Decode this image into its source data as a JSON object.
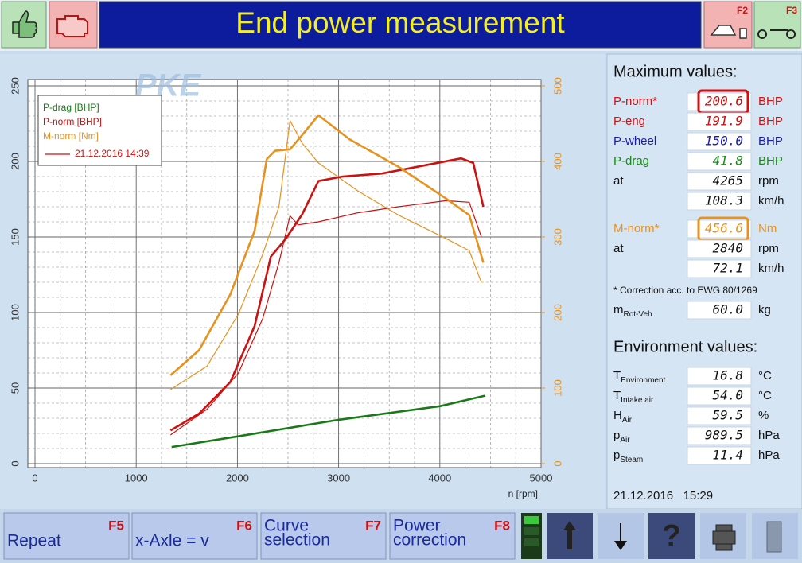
{
  "header": {
    "title": "End power measurement",
    "f2": "F2",
    "f3": "F3"
  },
  "logo": "PKE",
  "chart_data": {
    "type": "line",
    "xlim": [
      0,
      5000
    ],
    "xticks": [
      0,
      1000,
      2000,
      3000,
      4000,
      5000
    ],
    "ylim": [
      0,
      250
    ],
    "yticks": [
      0,
      50,
      100,
      150,
      200,
      250
    ],
    "y2lim": [
      0,
      500
    ],
    "y2ticks": [
      0,
      100,
      200,
      300,
      400,
      500
    ],
    "x_label": "n [rpm]",
    "grid": true,
    "series": [
      {
        "name": "P-drag [BHP]",
        "color": "#1a7a1a",
        "x": [
          1350,
          2000,
          3000,
          4000,
          4450
        ],
        "values": [
          11,
          18,
          29,
          38,
          45
        ]
      },
      {
        "name": "P-norm [BHP]",
        "color": "#cc1111",
        "x": [
          1340,
          1620,
          1930,
          2170,
          2330,
          2480,
          2640,
          2800,
          3040,
          3430,
          3820,
          4210,
          4330,
          4430
        ],
        "values": [
          22,
          33,
          54,
          91,
          137,
          149,
          165,
          187,
          190,
          192,
          197,
          202,
          199,
          170
        ]
      },
      {
        "name": "M-norm [Nm]",
        "color": "#e8921e",
        "axis": "y2",
        "x": [
          1340,
          1620,
          1930,
          2170,
          2290,
          2370,
          2520,
          2640,
          2800,
          3110,
          3590,
          4060,
          4290,
          4430
        ],
        "values": [
          117,
          150,
          224,
          308,
          403,
          414,
          416,
          435,
          461,
          429,
          393,
          351,
          329,
          266
        ]
      }
    ],
    "comparison": {
      "name": "21.12.2016 14:39",
      "color": "#cc1111",
      "series": [
        {
          "color": "#cc1111",
          "x": [
            1340,
            1700,
            2010,
            2250,
            2410,
            2520,
            2600,
            2800,
            3190,
            3590,
            4060,
            4290,
            4410
          ],
          "values": [
            19,
            36,
            60,
            96,
            133,
            164,
            158,
            160,
            166,
            170,
            174,
            173,
            150
          ]
        },
        {
          "color": "#e8921e",
          "axis": "y2",
          "x": [
            1340,
            1700,
            2010,
            2250,
            2410,
            2520,
            2640,
            2800,
            3190,
            3590,
            4060,
            4290,
            4410
          ],
          "values": [
            98,
            129,
            198,
            277,
            340,
            454,
            424,
            398,
            361,
            329,
            298,
            282,
            240
          ]
        }
      ]
    }
  },
  "max_panel": {
    "title": "Maximum values:",
    "rows": [
      {
        "label": "P-norm*",
        "value": "200.6",
        "unit": "BHP",
        "color": "#d01010",
        "boxed": true
      },
      {
        "label": "P-eng",
        "value": "191.9",
        "unit": "BHP",
        "color": "#d01010"
      },
      {
        "label": "P-wheel",
        "value": "150.0",
        "unit": "BHP",
        "color": "#1a1ab0"
      },
      {
        "label": "P-drag",
        "value": "41.8",
        "unit": "BHP",
        "color": "#1a8a1a"
      },
      {
        "label": "at",
        "value": "4265",
        "unit": "rpm"
      },
      {
        "value": "108.3",
        "unit": "km/h"
      },
      {
        "label": "M-norm*",
        "value": "456.6",
        "unit": "Nm",
        "color": "#e8921e",
        "boxed": true
      },
      {
        "label": "at",
        "value": "2840",
        "unit": "rpm"
      },
      {
        "value": "72.1",
        "unit": "km/h"
      }
    ],
    "note": "* Correction acc. to EWG 80/1269",
    "mass": {
      "label": "m",
      "sub": "Rot-Veh",
      "value": "60.0",
      "unit": "kg"
    }
  },
  "env_panel": {
    "title": "Environment values:",
    "rows": [
      {
        "label": "T",
        "sub": "Environment",
        "value": "16.8",
        "unit": "°C"
      },
      {
        "label": "T",
        "sub": "Intake air",
        "value": "54.0",
        "unit": "°C"
      },
      {
        "label": "H",
        "sub": "Air",
        "value": "59.5",
        "unit": "%"
      },
      {
        "label": "p",
        "sub": "Air",
        "value": "989.5",
        "unit": "hPa"
      },
      {
        "label": "p",
        "sub": "Steam",
        "value": "11.4",
        "unit": "hPa"
      }
    ]
  },
  "datetime": "21.12.2016   15:29",
  "buttons": [
    {
      "lines": [
        "Repeat"
      ],
      "key": "F5"
    },
    {
      "lines": [
        "x-Axle = v"
      ],
      "key": "F6"
    },
    {
      "lines": [
        "Curve",
        "selection"
      ],
      "key": "F7"
    },
    {
      "lines": [
        "Power",
        "correction"
      ],
      "key": "F8"
    }
  ]
}
